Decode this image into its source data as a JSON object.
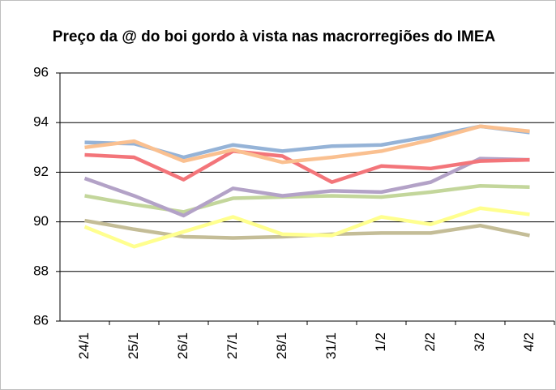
{
  "chart_data": {
    "type": "line",
    "title": "Preço da @ do boi gordo à vista nas macrorregiões do IMEA",
    "categories": [
      "24/1",
      "25/1",
      "26/1",
      "27/1",
      "28/1",
      "31/1",
      "1/2",
      "2/2",
      "3/2",
      "4/2"
    ],
    "series": [
      {
        "color": "#c4bd97",
        "values": [
          90.05,
          89.7,
          89.4,
          89.35,
          89.4,
          89.5,
          89.55,
          89.55,
          89.85,
          89.45
        ]
      },
      {
        "color": "#ffff8f",
        "values": [
          89.8,
          89.0,
          89.6,
          90.2,
          89.5,
          89.45,
          90.2,
          89.9,
          90.55,
          90.3
        ]
      },
      {
        "color": "#c3d69b",
        "values": [
          91.05,
          90.7,
          90.4,
          90.95,
          91.0,
          91.05,
          91.0,
          91.2,
          91.45,
          91.4
        ]
      },
      {
        "color": "#b3a2c7",
        "values": [
          91.75,
          91.05,
          90.25,
          91.35,
          91.05,
          91.25,
          91.2,
          91.6,
          92.55,
          92.5
        ]
      },
      {
        "color": "#f3757a",
        "values": [
          92.7,
          92.6,
          91.7,
          92.85,
          92.65,
          91.6,
          92.25,
          92.15,
          92.45,
          92.5
        ]
      },
      {
        "color": "#95b3d7",
        "values": [
          93.2,
          93.15,
          92.6,
          93.1,
          92.85,
          93.05,
          93.1,
          93.45,
          93.85,
          93.6
        ]
      },
      {
        "color": "#fac090",
        "values": [
          93.0,
          93.25,
          92.45,
          92.9,
          92.4,
          92.6,
          92.85,
          93.3,
          93.85,
          93.65
        ]
      }
    ],
    "ylim": [
      86,
      96
    ],
    "yticks": [
      86,
      88,
      90,
      92,
      94,
      96
    ],
    "grid": true
  }
}
